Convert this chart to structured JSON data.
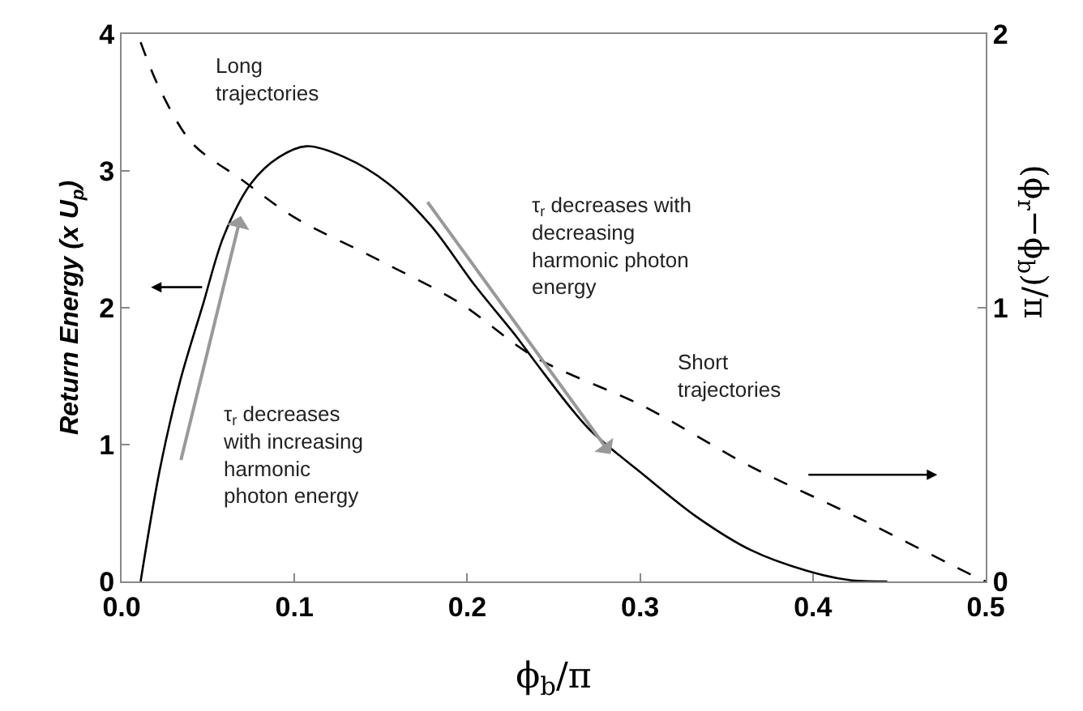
{
  "chart_data": {
    "type": "line",
    "xlabel": "ϕ$_{b}$/π",
    "ylabel": "Return Energy (x U$_{p}$)",
    "y2label": "(ϕ$_{r}$−ϕ$_{b}$)/π",
    "xlim": [
      0,
      0.5
    ],
    "xticks": [
      {
        "value": 0,
        "label": "0.0"
      },
      0.1,
      0.2,
      0.3,
      0.4,
      0.5
    ],
    "ylim": [
      0,
      4
    ],
    "yticks": [
      0,
      1,
      2,
      3,
      4
    ],
    "y2lim": [
      0,
      2
    ],
    "y2ticks": [
      0,
      1,
      2
    ],
    "series": [
      {
        "color": "#000000",
        "line_style": "solid",
        "x": [
          0.011,
          0.022,
          0.034,
          0.047,
          0.059,
          0.075,
          0.091,
          0.107,
          0.129,
          0.154,
          0.179,
          0.204,
          0.229,
          0.239,
          0.27,
          0.302,
          0.333,
          0.364,
          0.396,
          0.421,
          0.443
        ],
        "values": [
          0,
          0.81,
          1.47,
          2.02,
          2.52,
          2.91,
          3.1,
          3.18,
          3.1,
          2.91,
          2.6,
          2.17,
          1.78,
          1.61,
          1.12,
          0.78,
          0.47,
          0.23,
          0.08,
          0.01,
          0
        ]
      },
      {
        "color": "#000000",
        "line_style": "dashed",
        "axis": "y2",
        "x": [
          0.011,
          0.022,
          0.041,
          0.069,
          0.1,
          0.147,
          0.195,
          0.239,
          0.302,
          0.364,
          0.427,
          0.493,
          0.5
        ],
        "values": [
          1.97,
          1.8,
          1.6,
          1.47,
          1.33,
          1.18,
          1.02,
          0.82,
          0.64,
          0.42,
          0.23,
          0.02,
          0
        ]
      }
    ],
    "annotations": [
      "Long\ntrajectories",
      "τ$_{r}$ decreases\nwith increasing\nharmonic\nphoton energy",
      "τ$_{r}$ decreases with\ndecreasing\nharmonic photon\nenergy",
      "Short\ntrajectories"
    ]
  }
}
